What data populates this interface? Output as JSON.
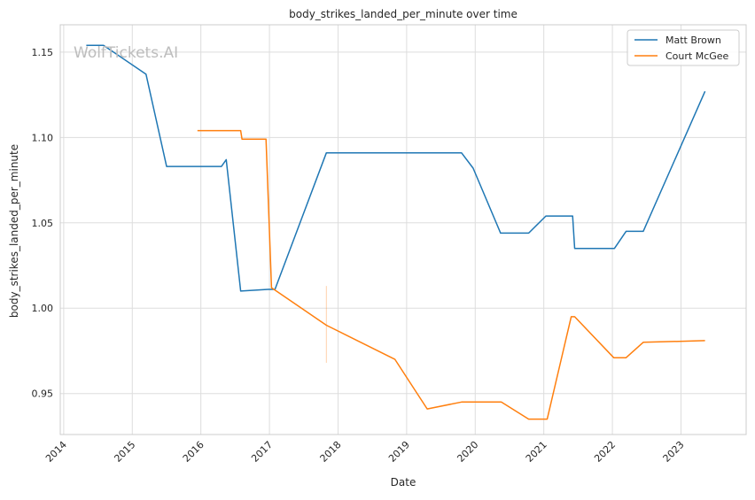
{
  "chart_data": {
    "type": "line",
    "title": "body_strikes_landed_per_minute over time",
    "xlabel": "Date",
    "ylabel": "body_strikes_landed_per_minute",
    "watermark": "WolfTickets.AI",
    "x_ticks": [
      "2014",
      "2015",
      "2016",
      "2017",
      "2018",
      "2019",
      "2020",
      "2021",
      "2022",
      "2023"
    ],
    "y_ticks": [
      "0.95",
      "1.00",
      "1.05",
      "1.10",
      "1.15"
    ],
    "xlim": [
      2013.95,
      2023.95
    ],
    "ylim": [
      0.926,
      1.166
    ],
    "grid": true,
    "legend_position": "top-right",
    "series": [
      {
        "name": "Matt Brown",
        "color": "#1f77b4",
        "x": [
          2014.33,
          2014.58,
          2015.2,
          2015.5,
          2016.3,
          2016.37,
          2016.58,
          2016.98,
          2017.08,
          2017.83,
          2019.8,
          2019.97,
          2020.37,
          2020.78,
          2021.03,
          2021.42,
          2021.45,
          2022.03,
          2022.2,
          2022.45,
          2023.35
        ],
        "y": [
          1.154,
          1.154,
          1.137,
          1.083,
          1.083,
          1.087,
          1.01,
          1.011,
          1.011,
          1.091,
          1.091,
          1.082,
          1.044,
          1.044,
          1.054,
          1.054,
          1.035,
          1.035,
          1.045,
          1.045,
          1.127
        ]
      },
      {
        "name": "Court McGee",
        "color": "#ff7f0e",
        "x": [
          2015.95,
          2016.58,
          2016.6,
          2016.95,
          2017.03,
          2017.83,
          2018.83,
          2019.3,
          2019.8,
          2020.38,
          2020.78,
          2021.05,
          2021.4,
          2021.45,
          2022.02,
          2022.2,
          2022.45,
          2023.35
        ],
        "y": [
          1.104,
          1.104,
          1.099,
          1.099,
          1.012,
          0.99,
          0.97,
          0.941,
          0.945,
          0.945,
          0.935,
          0.935,
          0.995,
          0.995,
          0.971,
          0.971,
          0.98,
          0.981
        ]
      }
    ],
    "annotations": [
      {
        "x": 2017.83,
        "y0": 0.968,
        "y1": 1.013,
        "color": "#ff7f0e"
      }
    ]
  }
}
